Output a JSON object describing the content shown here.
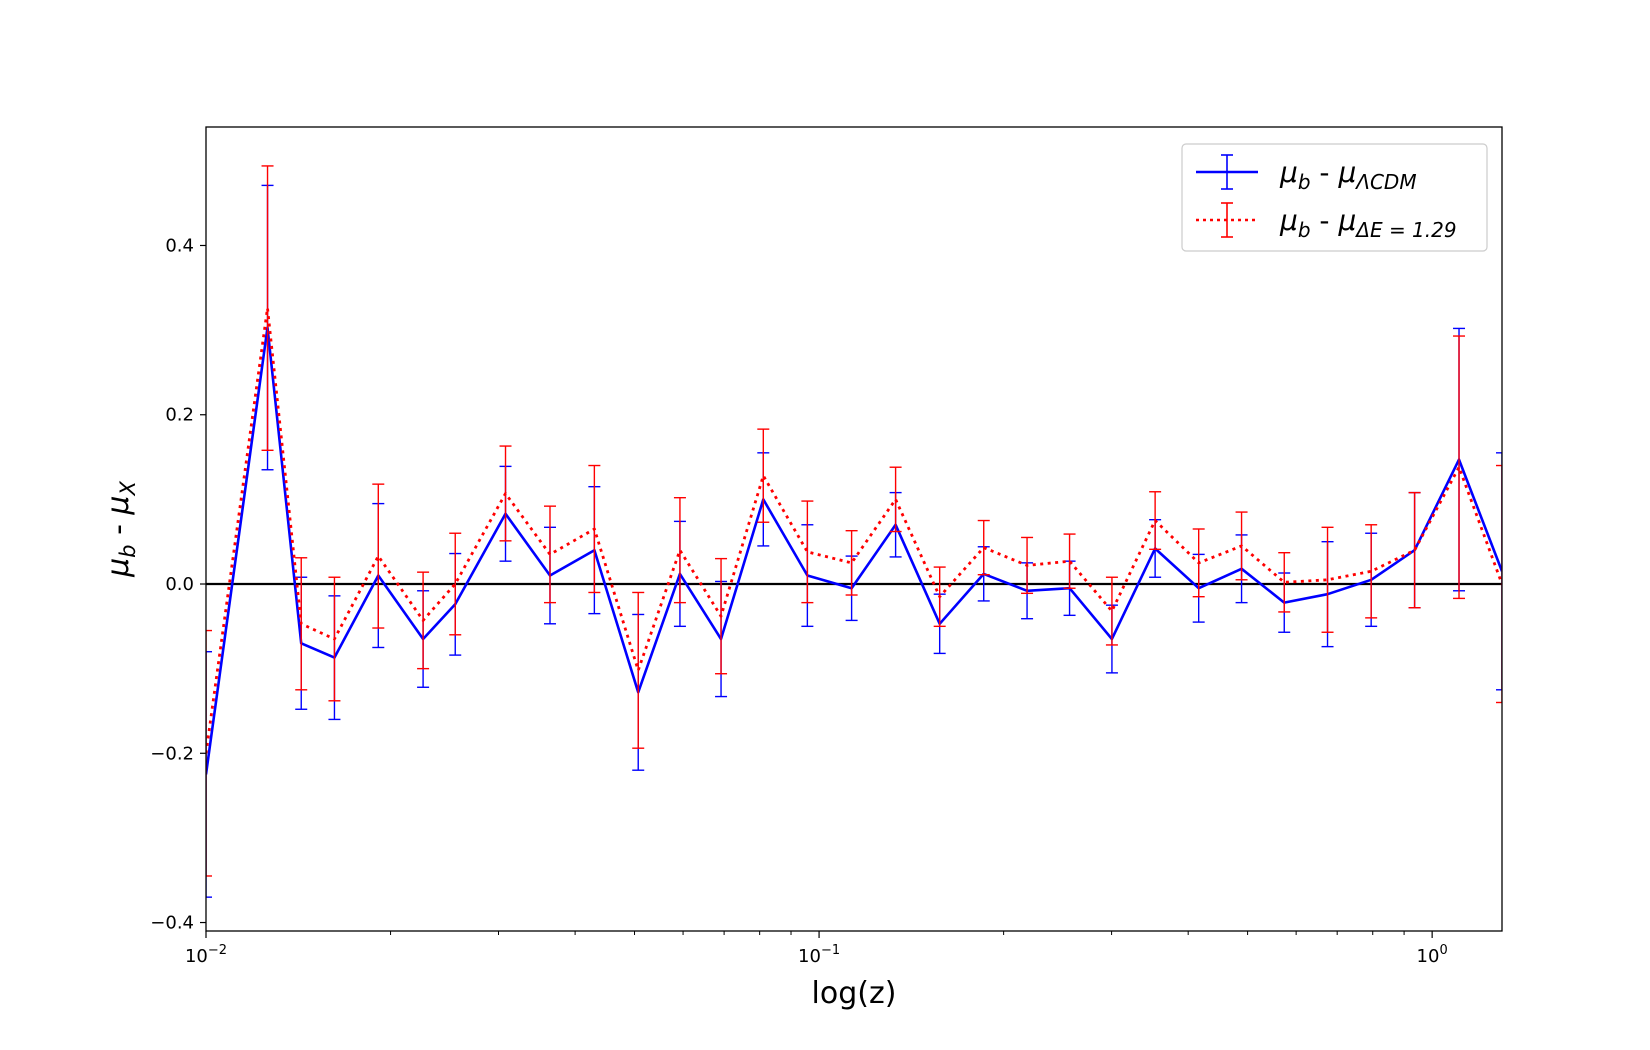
{
  "chart_data": {
    "type": "line",
    "title": "",
    "xlabel": "log(z)",
    "ylabel": {
      "mu": "μ",
      "b": "b",
      "sep": " - ",
      "X": "X"
    },
    "xscale": "log",
    "xlim": [
      0.01,
      1.3
    ],
    "ylim": [
      -0.41,
      0.54
    ],
    "x_ticks": [
      {
        "value": 0.01,
        "base": "10",
        "exp": "−2"
      },
      {
        "value": 0.1,
        "base": "10",
        "exp": "−1"
      },
      {
        "value": 1,
        "base": "10",
        "exp": "0"
      }
    ],
    "y_ticks": [
      {
        "value": -0.4,
        "label": "−0.4"
      },
      {
        "value": -0.2,
        "label": "−0.2"
      },
      {
        "value": 0.0,
        "label": "0.0"
      },
      {
        "value": 0.2,
        "label": "0.2"
      },
      {
        "value": 0.4,
        "label": "0.4"
      }
    ],
    "grid": false,
    "legend_position": "top-right",
    "zero_line": true,
    "series": [
      {
        "legend": {
          "mu": "μ",
          "b": "b",
          "sep": " - ",
          "sub": "ΛCDM"
        },
        "color": "#0000ff",
        "style": "solid",
        "x": [
          0.01,
          0.0126,
          0.0143,
          0.0162,
          0.0191,
          0.0226,
          0.0255,
          0.0308,
          0.0364,
          0.043,
          0.0507,
          0.0593,
          0.0692,
          0.0811,
          0.0957,
          0.113,
          0.1333,
          0.1573,
          0.1856,
          0.2184,
          0.2562,
          0.3004,
          0.3533,
          0.4161,
          0.4888,
          0.5738,
          0.6751,
          0.7953,
          0.9362,
          1.1062,
          1.3
        ],
        "y": [
          -0.225,
          0.303,
          -0.07,
          -0.087,
          0.01,
          -0.065,
          -0.024,
          0.083,
          0.01,
          0.04,
          -0.128,
          0.012,
          -0.065,
          0.1,
          0.01,
          -0.005,
          0.07,
          -0.047,
          0.012,
          -0.008,
          -0.005,
          -0.065,
          0.042,
          -0.005,
          0.018,
          -0.022,
          -0.012,
          0.005,
          0.04,
          0.147,
          0.015
        ],
        "err": [
          0.145,
          0.168,
          0.078,
          0.073,
          0.085,
          0.057,
          0.06,
          0.056,
          0.057,
          0.075,
          0.092,
          0.062,
          0.068,
          0.055,
          0.06,
          0.038,
          0.038,
          0.035,
          0.032,
          0.033,
          0.032,
          0.04,
          0.034,
          0.04,
          0.04,
          0.035,
          0.062,
          0.055,
          0.068,
          0.155,
          0.14
        ]
      },
      {
        "legend": {
          "mu": "μ",
          "b": "b",
          "sep": " - ",
          "sub": "ΔE = 1.29"
        },
        "color": "#ff0000",
        "style": "dotted",
        "x": [
          0.01,
          0.0126,
          0.0143,
          0.0162,
          0.0191,
          0.0226,
          0.0255,
          0.0308,
          0.0364,
          0.043,
          0.0507,
          0.0593,
          0.0692,
          0.0811,
          0.0957,
          0.113,
          0.1333,
          0.1573,
          0.1856,
          0.2184,
          0.2562,
          0.3004,
          0.3533,
          0.4161,
          0.4888,
          0.5738,
          0.6751,
          0.7953,
          0.9362,
          1.1062,
          1.3
        ],
        "y": [
          -0.2,
          0.326,
          -0.047,
          -0.065,
          0.033,
          -0.043,
          0.0,
          0.107,
          0.035,
          0.065,
          -0.102,
          0.04,
          -0.038,
          0.128,
          0.038,
          0.025,
          0.1,
          -0.015,
          0.043,
          0.022,
          0.027,
          -0.032,
          0.075,
          0.025,
          0.045,
          0.002,
          0.005,
          0.015,
          0.04,
          0.138,
          0.0
        ],
        "err": [
          0.145,
          0.168,
          0.078,
          0.073,
          0.085,
          0.057,
          0.06,
          0.056,
          0.057,
          0.075,
          0.092,
          0.062,
          0.068,
          0.055,
          0.06,
          0.038,
          0.038,
          0.035,
          0.032,
          0.033,
          0.032,
          0.04,
          0.034,
          0.04,
          0.04,
          0.035,
          0.062,
          0.055,
          0.068,
          0.155,
          0.14
        ]
      }
    ]
  }
}
